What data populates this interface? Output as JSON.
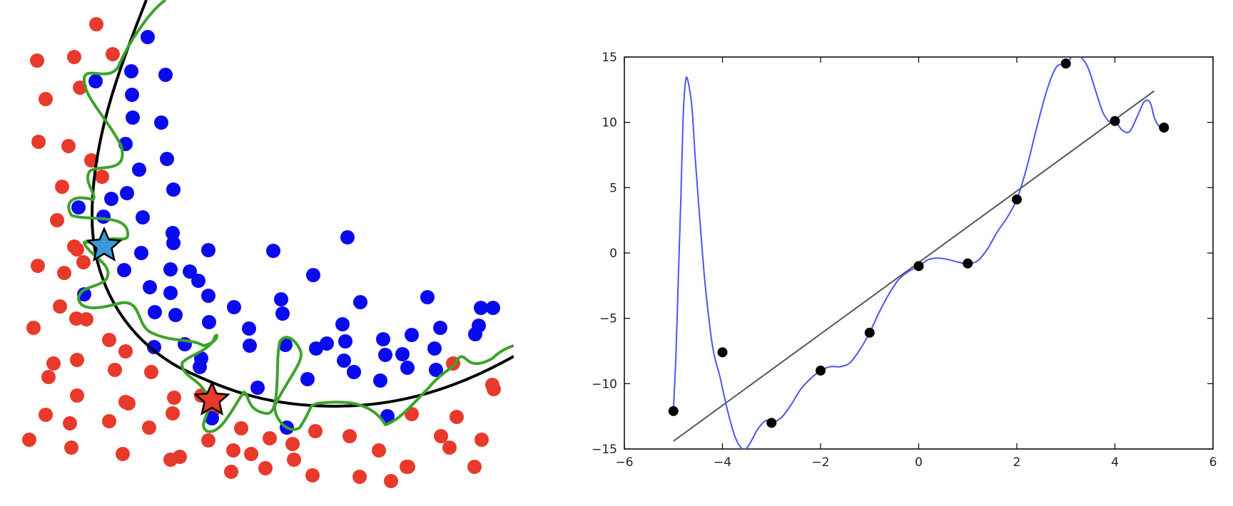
{
  "charts": [
    {
      "id": "classification",
      "type": "scatter",
      "axes_visible": false,
      "domain": {
        "x": [
          0,
          720
        ],
        "y": [
          0,
          706
        ]
      },
      "note": "Point coordinates are in the figure's own (unitless) data space; y increases downward as drawn.",
      "colors": {
        "class_a": "#e8392a",
        "class_b": "#0a0af0",
        "smooth_boundary": "#000000",
        "overfit_boundary": "#3ca32a",
        "star_blue": "#3a9ad9",
        "star_red": "#e8392a"
      },
      "series": [
        {
          "class": "red",
          "points": [
            [
              135,
              34
            ],
            [
              52,
              85
            ],
            [
              104,
              80
            ],
            [
              158,
              76
            ],
            [
              64,
              139
            ],
            [
              112,
              123
            ],
            [
              54,
              199
            ],
            [
              96,
              205
            ],
            [
              128,
              225
            ],
            [
              143,
              248
            ],
            [
              87,
              262
            ],
            [
              80,
              309
            ],
            [
              108,
              350
            ],
            [
              104,
              346
            ],
            [
              53,
              373
            ],
            [
              90,
              383
            ],
            [
              117,
              368
            ],
            [
              84,
              430
            ],
            [
              107,
              447
            ],
            [
              47,
              460
            ],
            [
              121,
              448
            ],
            [
              153,
              477
            ],
            [
              176,
              493
            ],
            [
              75,
              510
            ],
            [
              108,
              505
            ],
            [
              68,
              529
            ],
            [
              161,
              519
            ],
            [
              212,
              522
            ],
            [
              108,
              555
            ],
            [
              176,
              564
            ],
            [
              244,
              558
            ],
            [
              282,
              555
            ],
            [
              64,
              582
            ],
            [
              98,
              594
            ],
            [
              153,
              591
            ],
            [
              209,
              600
            ],
            [
              242,
              580
            ],
            [
              180,
              566
            ],
            [
              298,
              577
            ],
            [
              41,
              617
            ],
            [
              100,
              628
            ],
            [
              172,
              637
            ],
            [
              239,
              645
            ],
            [
              252,
              641
            ],
            [
              292,
              618
            ],
            [
              338,
              601
            ],
            [
              327,
              632
            ],
            [
              352,
              637
            ],
            [
              378,
              615
            ],
            [
              410,
              623
            ],
            [
              442,
              605
            ],
            [
              490,
              612
            ],
            [
              577,
              581
            ],
            [
              618,
              612
            ],
            [
              531,
              632
            ],
            [
              572,
              655
            ],
            [
              630,
              628
            ],
            [
              324,
              662
            ],
            [
              372,
              657
            ],
            [
              412,
              645
            ],
            [
              438,
              667
            ],
            [
              504,
              669
            ],
            [
              548,
              675
            ],
            [
              570,
              655
            ],
            [
              640,
              585
            ],
            [
              692,
              546
            ],
            [
              675,
              617
            ],
            [
              665,
              655
            ],
            [
              635,
              510
            ],
            [
              690,
              540
            ]
          ]
        },
        {
          "class": "blue",
          "points": [
            [
              207,
              52
            ],
            [
              134,
              114
            ],
            [
              184,
              100
            ],
            [
              232,
              105
            ],
            [
              185,
              133
            ],
            [
              186,
              165
            ],
            [
              226,
              172
            ],
            [
              176,
              202
            ],
            [
              195,
              238
            ],
            [
              234,
              223
            ],
            [
              243,
              266
            ],
            [
              156,
              279
            ],
            [
              110,
              291
            ],
            [
              178,
              271
            ],
            [
              145,
              304
            ],
            [
              200,
              305
            ],
            [
              242,
              327
            ],
            [
              243,
              341
            ],
            [
              292,
              351
            ],
            [
              198,
              355
            ],
            [
              174,
              379
            ],
            [
              239,
              378
            ],
            [
              266,
              381
            ],
            [
              383,
              352
            ],
            [
              487,
              333
            ],
            [
              210,
              403
            ],
            [
              239,
              411
            ],
            [
              278,
              394
            ],
            [
              292,
              415
            ],
            [
              439,
              386
            ],
            [
              328,
              431
            ],
            [
              394,
              420
            ],
            [
              217,
              438
            ],
            [
              246,
              442
            ],
            [
              293,
              452
            ],
            [
              349,
              461
            ],
            [
              396,
              440
            ],
            [
              599,
              417
            ],
            [
              505,
              424
            ],
            [
              480,
              455
            ],
            [
              617,
              460
            ],
            [
              674,
              432
            ],
            [
              666,
              469
            ],
            [
              216,
              487
            ],
            [
              259,
              483
            ],
            [
              282,
              503
            ],
            [
              350,
              485
            ],
            [
              400,
              484
            ],
            [
              443,
              489
            ],
            [
              458,
              482
            ],
            [
              484,
              479
            ],
            [
              482,
              506
            ],
            [
              537,
              476
            ],
            [
              577,
              470
            ],
            [
              540,
              498
            ],
            [
              564,
              497
            ],
            [
              611,
              519
            ],
            [
              609,
              489
            ],
            [
              671,
              457
            ],
            [
              280,
              515
            ],
            [
              361,
              544
            ],
            [
              431,
              532
            ],
            [
              496,
              522
            ],
            [
              533,
              534
            ],
            [
              571,
              516
            ],
            [
              118,
              413
            ],
            [
              691,
              432
            ],
            [
              496,
              522
            ],
            [
              543,
              584
            ],
            [
              402,
              600
            ],
            [
              297,
              587
            ]
          ]
        }
      ],
      "stars": [
        {
          "name": "blue-star",
          "point": [
            146,
            345
          ]
        },
        {
          "name": "red-star",
          "point": [
            297,
            561
          ]
        }
      ]
    },
    {
      "id": "regression",
      "type": "line",
      "xlim": [
        -6,
        6
      ],
      "ylim": [
        -15,
        15
      ],
      "xticks": [
        "−6",
        "−4",
        "−2",
        "0",
        "2",
        "4",
        "6"
      ],
      "yticks": [
        "15",
        "10",
        "5",
        "0",
        "−5",
        "−10",
        "−15"
      ],
      "colors": {
        "points": "#000000",
        "fit_line": "#555555",
        "overfit_curve": "#4b55f0",
        "frame": "#000000"
      },
      "series": [
        {
          "kind": "points",
          "x": [
            -5,
            -4,
            -3,
            -2,
            -1,
            0,
            1,
            2,
            3,
            4,
            5
          ],
          "y": [
            -12.1,
            -7.6,
            -13.0,
            -9.0,
            -6.1,
            -1.0,
            -0.8,
            4.1,
            14.5,
            10.1,
            9.6
          ]
        },
        {
          "kind": "linear_fit",
          "x": [
            -5,
            4.8
          ],
          "y": [
            -14.4,
            12.4
          ]
        },
        {
          "kind": "interpolating_curve",
          "x": [
            -5,
            -4.95,
            -4.9,
            -4.85,
            -4.8,
            -4.75,
            -4.7,
            -4.62,
            -4.55,
            -4.45,
            -4.35,
            -4.2,
            -4.05,
            -3.9,
            -3.75,
            -3.6,
            -3.5,
            -3.4,
            -3.3,
            -3.2,
            -3.1,
            -3.0,
            -2.8,
            -2.6,
            -2.4,
            -2.2,
            -2.0,
            -1.8,
            -1.6,
            -1.4,
            -1.2,
            -1.0,
            -0.8,
            -0.6,
            -0.4,
            -0.2,
            0.0,
            0.2,
            0.4,
            0.6,
            0.8,
            1.0,
            1.2,
            1.4,
            1.6,
            1.8,
            2.0,
            2.2,
            2.4,
            2.6,
            2.8,
            3.0,
            3.15,
            3.3,
            3.45,
            3.6,
            3.75,
            3.9,
            4.0,
            4.15,
            4.3,
            4.45,
            4.6,
            4.72,
            4.8,
            4.88,
            4.95,
            5.0
          ],
          "y": [
            -12.1,
            -8,
            -2,
            4,
            10.5,
            13.2,
            13.1,
            11,
            7,
            2,
            -2.5,
            -7.2,
            -9.5,
            -12,
            -14,
            -15,
            -14.9,
            -14.3,
            -13.6,
            -13.1,
            -12.8,
            -13.0,
            -12.6,
            -11.6,
            -10.4,
            -9.6,
            -9.0,
            -8.7,
            -8.7,
            -8.4,
            -7.4,
            -6.1,
            -4.5,
            -3.1,
            -2.0,
            -1.4,
            -1.0,
            -0.5,
            -0.4,
            -0.5,
            -0.7,
            -0.8,
            -0.6,
            0.3,
            1.6,
            2.7,
            4.1,
            6.5,
            9.5,
            12.3,
            14.2,
            14.5,
            15.1,
            15.0,
            14.2,
            12.5,
            10.8,
            10.0,
            10.1,
            9.4,
            9.3,
            10.4,
            11.6,
            11.5,
            10.4,
            9.8,
            9.6,
            9.6
          ]
        }
      ]
    }
  ]
}
